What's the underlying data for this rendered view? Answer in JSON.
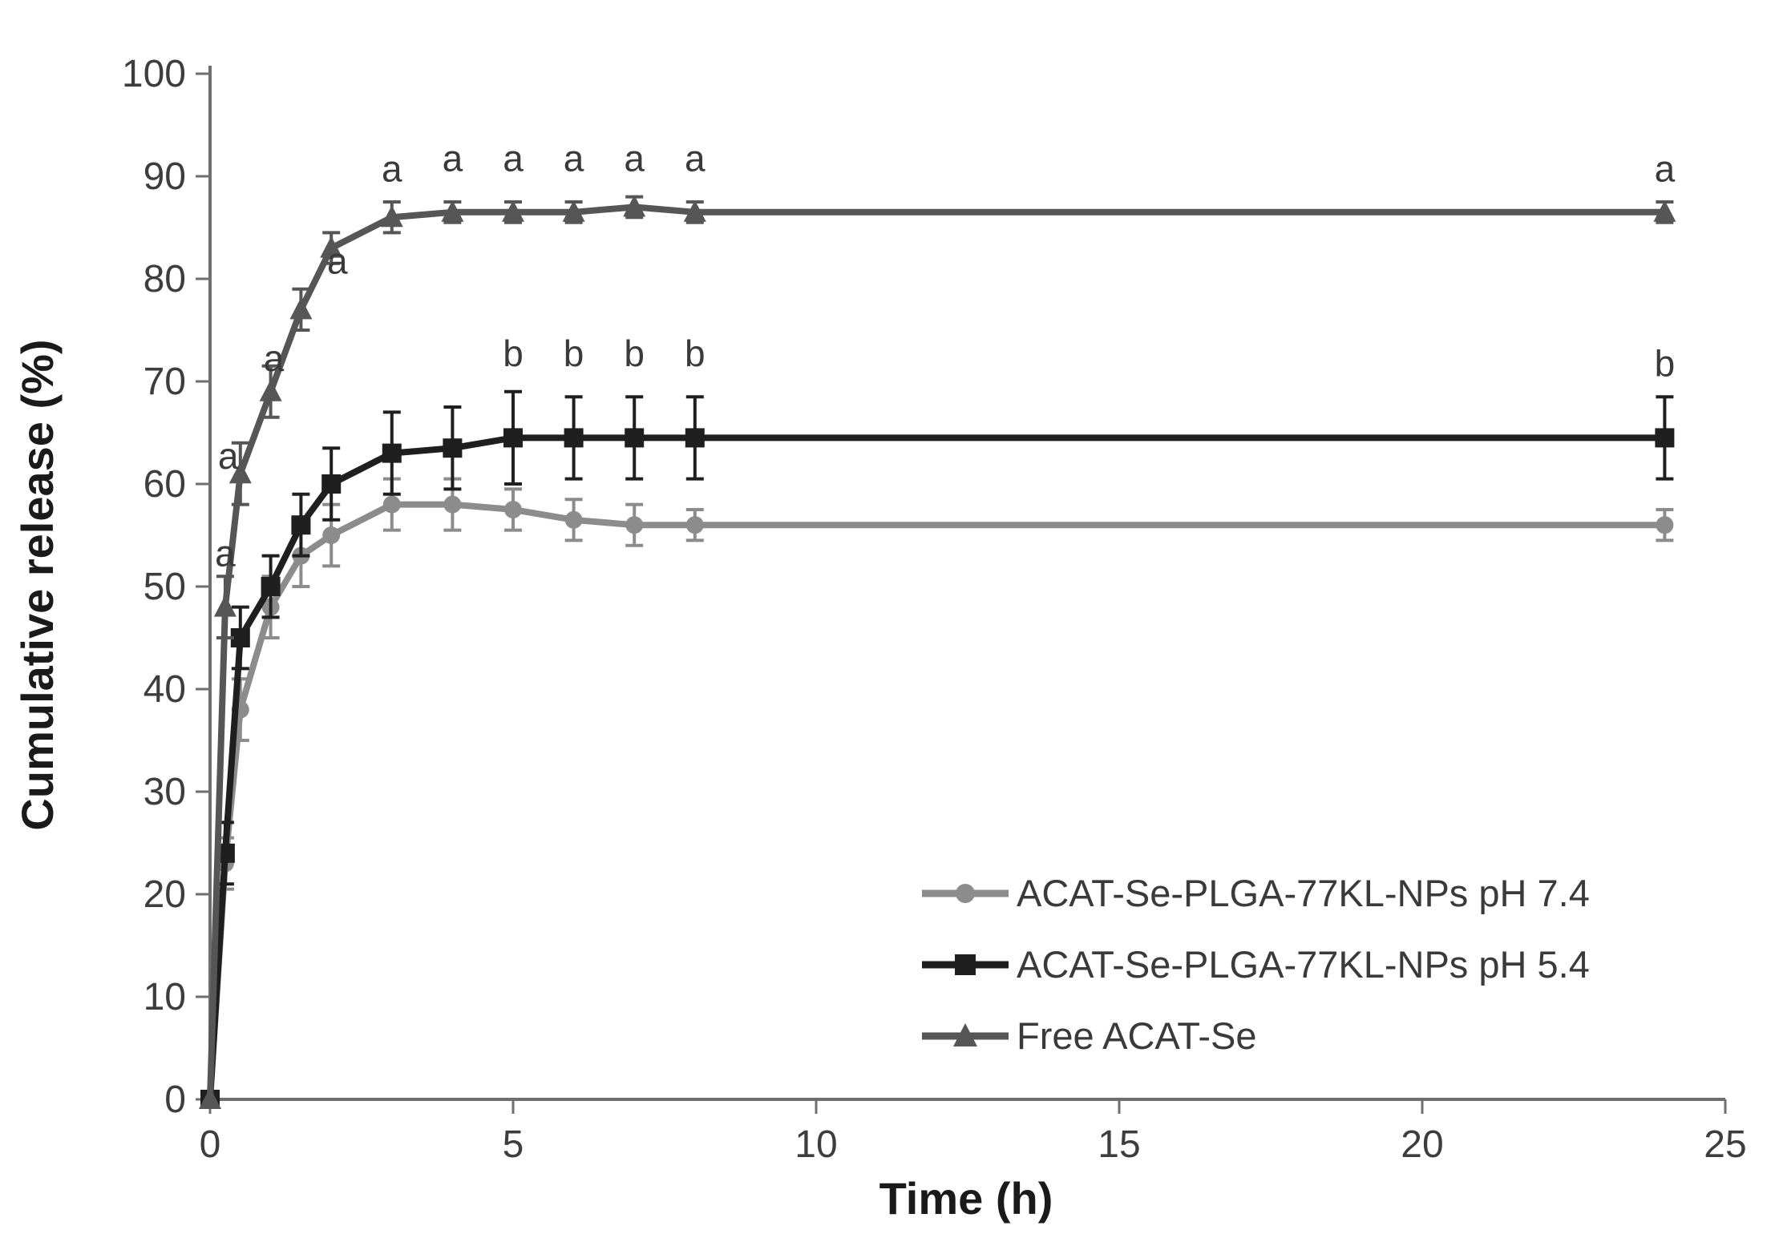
{
  "chart_data": {
    "type": "line",
    "title": "",
    "xlabel": "Time (h)",
    "ylabel": "Cumulative release (%)",
    "xlim": [
      0,
      25
    ],
    "ylim": [
      0,
      100
    ],
    "x_ticks": [
      0,
      5,
      10,
      15,
      20,
      25
    ],
    "y_ticks": [
      0,
      10,
      20,
      30,
      40,
      50,
      60,
      70,
      80,
      90,
      100
    ],
    "grid": false,
    "legend_position": "inside-bottom-right",
    "x": [
      0,
      0.25,
      0.5,
      1,
      1.5,
      2,
      3,
      4,
      5,
      6,
      7,
      8,
      24
    ],
    "series": [
      {
        "name": "ACAT-Se-PLGA-77KL-NPs pH 7.4",
        "marker": "circle",
        "color": "#8c8c8c",
        "values": [
          0,
          23,
          38,
          48,
          53,
          55,
          58,
          58,
          57.5,
          56.5,
          56,
          56,
          56
        ],
        "errors": [
          0,
          2.5,
          3,
          3,
          3,
          3,
          2.5,
          2.5,
          2,
          2,
          2,
          1.5,
          1.5
        ]
      },
      {
        "name": "ACAT-Se-PLGA-77KL-NPs pH 5.4",
        "marker": "square",
        "color": "#1f1f1f",
        "values": [
          0,
          24,
          45,
          50,
          56,
          60,
          63,
          63.5,
          64.5,
          64.5,
          64.5,
          64.5,
          64.5
        ],
        "errors": [
          0,
          3,
          3,
          3,
          3,
          3.5,
          4,
          4,
          4.5,
          4,
          4,
          4,
          4
        ]
      },
      {
        "name": "Free ACAT-Se",
        "marker": "triangle",
        "color": "#565656",
        "values": [
          0,
          48,
          61,
          69,
          77,
          83,
          86,
          86.5,
          86.5,
          86.5,
          87,
          86.5,
          86.5
        ],
        "errors": [
          0,
          3,
          3,
          2.5,
          2,
          1.5,
          1.5,
          1,
          1,
          1,
          1,
          1,
          1
        ]
      }
    ],
    "annotations": [
      {
        "text": "a",
        "x": 0.25,
        "y": 52
      },
      {
        "text": "a",
        "x": 0.3,
        "y": 61.5
      },
      {
        "text": "a",
        "x": 1.05,
        "y": 71
      },
      {
        "text": "a",
        "x": 2.1,
        "y": 80.5
      },
      {
        "text": "a",
        "x": 3,
        "y": 89.5
      },
      {
        "text": "a",
        "x": 4,
        "y": 90.5
      },
      {
        "text": "a",
        "x": 5,
        "y": 90.5
      },
      {
        "text": "a",
        "x": 6,
        "y": 90.5
      },
      {
        "text": "a",
        "x": 7,
        "y": 90.5
      },
      {
        "text": "a",
        "x": 8,
        "y": 90.5
      },
      {
        "text": "a",
        "x": 24,
        "y": 89.5
      },
      {
        "text": "b",
        "x": 5,
        "y": 71.5
      },
      {
        "text": "b",
        "x": 6,
        "y": 71.5
      },
      {
        "text": "b",
        "x": 7,
        "y": 71.5
      },
      {
        "text": "b",
        "x": 8,
        "y": 71.5
      },
      {
        "text": "b",
        "x": 24,
        "y": 70.5
      }
    ],
    "colors": {
      "axis": "#6f6f6f",
      "tick_text": "#3d3d3d",
      "background": "#ffffff"
    }
  }
}
